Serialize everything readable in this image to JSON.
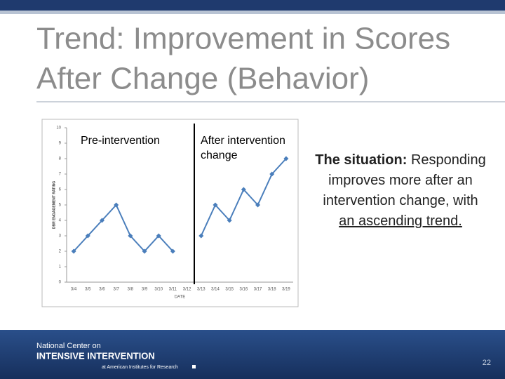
{
  "slide": {
    "title_line1": "Trend: Improvement in Scores",
    "title_line2": "After Change (Behavior)",
    "situation_label": "The situation:",
    "situation_text": "Responding improves more after an intervention change, with",
    "situation_underlined": "an ascending trend.",
    "footer_line1": "National Center on",
    "footer_line2": "INTENSIVE INTERVENTION",
    "footer_line3": "at American Institutes for Research",
    "page_number": "22"
  },
  "chart_data": {
    "type": "line",
    "categories": [
      "3/4",
      "3/5",
      "3/6",
      "3/7",
      "3/8",
      "3/9",
      "3/10",
      "3/11",
      "3/12",
      "3/13",
      "3/14",
      "3/15",
      "3/16",
      "3/17",
      "3/18",
      "3/19"
    ],
    "values": [
      2,
      3,
      4,
      5,
      3,
      2,
      3,
      2,
      null,
      3,
      5,
      4,
      6,
      5,
      7,
      8
    ],
    "color": "#4a7ebb",
    "ylim": [
      0,
      10
    ],
    "yticks": [
      0,
      1,
      2,
      3,
      4,
      5,
      6,
      7,
      8,
      9,
      10
    ],
    "y_label": "DBR ENGAGEMENT RATING",
    "x_label": "DATE",
    "annotations": [
      "Pre-intervention",
      "After intervention change"
    ]
  }
}
